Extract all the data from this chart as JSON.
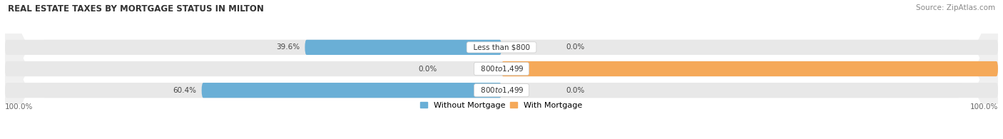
{
  "title": "REAL ESTATE TAXES BY MORTGAGE STATUS IN MILTON",
  "source": "Source: ZipAtlas.com",
  "categories": [
    "Less than $800",
    "$800 to $1,499",
    "$800 to $1,499"
  ],
  "without_mortgage": [
    39.6,
    0.0,
    60.4
  ],
  "with_mortgage": [
    0.0,
    100.0,
    0.0
  ],
  "color_without": "#6aafd6",
  "color_with": "#f5a959",
  "color_without_light": "#b8d4ea",
  "color_with_light": "#f9d4a0",
  "bg_bar": "#e8e8e8",
  "bg_figure": "#ffffff",
  "title_fontsize": 8.5,
  "label_fontsize": 7.5,
  "tick_fontsize": 7.5,
  "source_fontsize": 7.5,
  "legend_fontsize": 8,
  "bar_height": 0.32,
  "max_val": 100.0,
  "row_bg": "#f0f0f0"
}
